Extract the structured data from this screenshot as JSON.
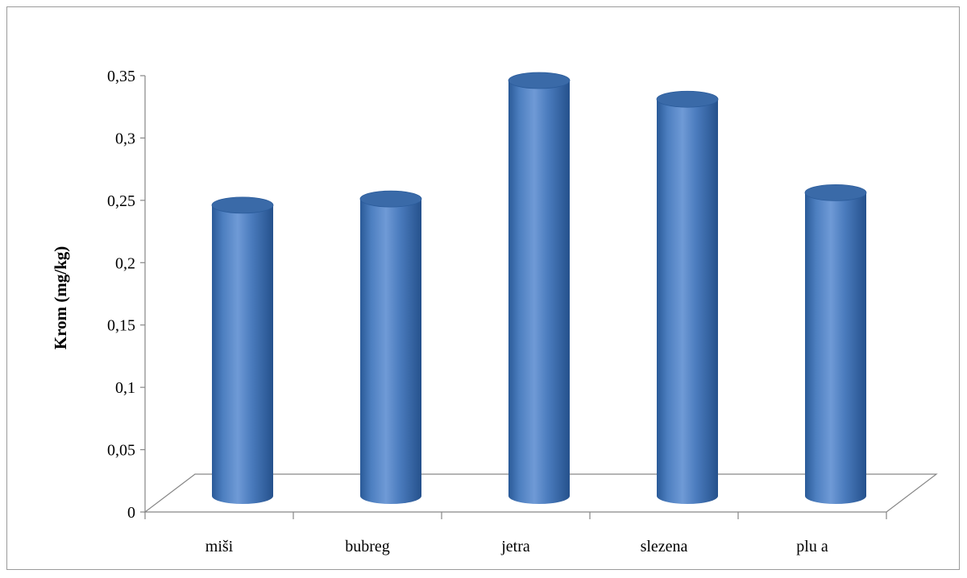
{
  "chart_data": {
    "type": "bar",
    "style": "3d-cylinder",
    "categories": [
      "miši",
      "bubreg",
      "jetra",
      "slezena",
      "plu a"
    ],
    "values": [
      0.25,
      0.255,
      0.35,
      0.335,
      0.26
    ],
    "ylabel": "Krom (mg/kg)",
    "xlabel": "",
    "title": "",
    "ylim": [
      0,
      0.35
    ],
    "yticks": [
      0,
      0.05,
      0.1,
      0.15,
      0.2,
      0.25,
      0.3,
      0.35
    ],
    "ytick_labels": [
      "0",
      "0,05",
      "0,1",
      "0,15",
      "0,2",
      "0,25",
      "0,3",
      "0,35"
    ],
    "grid": false,
    "legend": "none",
    "colors": {
      "bar_front": "#4f81bd",
      "bar_top": "#3a6aa8",
      "axis": "#868686",
      "frame": "#9a9a9a"
    }
  }
}
